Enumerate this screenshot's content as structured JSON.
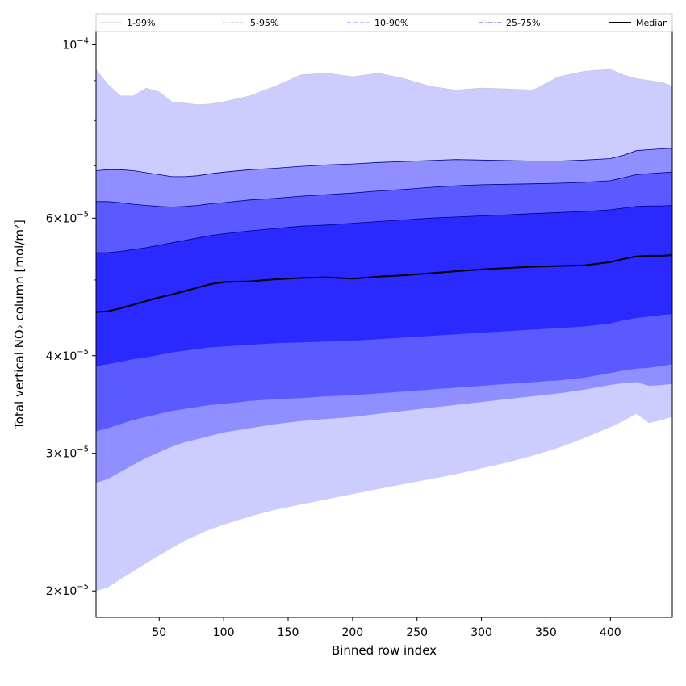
{
  "chart_data": {
    "type": "area",
    "xlabel": "Binned row index",
    "ylabel": "Total vertical NO₂ column [mol/m²]",
    "xlim": [
      1,
      448
    ],
    "ylim": [
      1.85e-05,
      0.000104
    ],
    "yscale": "log",
    "x_ticks": [
      50,
      100,
      150,
      200,
      250,
      300,
      350,
      400
    ],
    "x_tick_labels": [
      "50",
      "100",
      "150",
      "200",
      "250",
      "300",
      "350",
      "400"
    ],
    "y_ticks": [
      2e-05,
      3e-05,
      4e-05,
      6e-05,
      0.0001
    ],
    "y_tick_labels": [
      {
        "mant": "2×10",
        "exp": "−5"
      },
      {
        "mant": "3×10",
        "exp": "−5"
      },
      {
        "mant": "4×10",
        "exp": "−5"
      },
      {
        "mant": "6×10",
        "exp": "−5"
      },
      {
        "mant": "10",
        "exp": "−4"
      }
    ],
    "legend_position": "top, spanning full width",
    "x": [
      1,
      10,
      20,
      30,
      40,
      50,
      60,
      70,
      80,
      90,
      100,
      120,
      140,
      160,
      180,
      200,
      220,
      240,
      260,
      280,
      300,
      320,
      340,
      360,
      380,
      400,
      410,
      420,
      430,
      440,
      448
    ],
    "bands": [
      {
        "name": "1-99%",
        "color": "#ccccff",
        "edge": "#c8c8dc",
        "lower": [
          2e-05,
          2.02e-05,
          2.07e-05,
          2.12e-05,
          2.17e-05,
          2.22e-05,
          2.27e-05,
          2.32e-05,
          2.36e-05,
          2.4e-05,
          2.43e-05,
          2.49e-05,
          2.54e-05,
          2.58e-05,
          2.62e-05,
          2.66e-05,
          2.7e-05,
          2.74e-05,
          2.78e-05,
          2.82e-05,
          2.87e-05,
          2.92e-05,
          2.98e-05,
          3.05e-05,
          3.14e-05,
          3.24e-05,
          3.3e-05,
          3.37e-05,
          3.28e-05,
          3.31e-05,
          3.34e-05
        ],
        "upper": [
          9.3e-05,
          8.9e-05,
          8.6e-05,
          8.6e-05,
          8.8e-05,
          8.7e-05,
          8.45e-05,
          8.42e-05,
          8.38e-05,
          8.4e-05,
          8.45e-05,
          8.6e-05,
          8.85e-05,
          9.15e-05,
          9.2e-05,
          9.1e-05,
          9.2e-05,
          9.05e-05,
          8.85e-05,
          8.75e-05,
          8.8e-05,
          8.78e-05,
          8.75e-05,
          9.1e-05,
          9.25e-05,
          9.3e-05,
          9.15e-05,
          9.05e-05,
          9e-05,
          8.95e-05,
          8.85e-05
        ]
      },
      {
        "name": "5-95%",
        "color": "#8f8fff",
        "edge": "#00008b",
        "lower": [
          2.75e-05,
          2.78e-05,
          2.84e-05,
          2.9e-05,
          2.96e-05,
          3.01e-05,
          3.06e-05,
          3.1e-05,
          3.13e-05,
          3.16e-05,
          3.19e-05,
          3.23e-05,
          3.27e-05,
          3.3e-05,
          3.32e-05,
          3.34e-05,
          3.37e-05,
          3.4e-05,
          3.43e-05,
          3.46e-05,
          3.49e-05,
          3.52e-05,
          3.55e-05,
          3.58e-05,
          3.62e-05,
          3.67e-05,
          3.69e-05,
          3.7e-05,
          3.66e-05,
          3.67e-05,
          3.68e-05
        ],
        "upper": [
          6.9e-05,
          6.92e-05,
          6.92e-05,
          6.9e-05,
          6.86e-05,
          6.82e-05,
          6.78e-05,
          6.78e-05,
          6.8e-05,
          6.84e-05,
          6.87e-05,
          6.92e-05,
          6.95e-05,
          6.99e-05,
          7.02e-05,
          7.04e-05,
          7.07e-05,
          7.09e-05,
          7.11e-05,
          7.13e-05,
          7.12e-05,
          7.11e-05,
          7.1e-05,
          7.1e-05,
          7.12e-05,
          7.15e-05,
          7.22e-05,
          7.32e-05,
          7.34e-05,
          7.36e-05,
          7.37e-05
        ]
      },
      {
        "name": "10-90%",
        "color": "#5a5aff",
        "edge": "#00008b",
        "lower": [
          3.2e-05,
          3.23e-05,
          3.27e-05,
          3.31e-05,
          3.34e-05,
          3.37e-05,
          3.4e-05,
          3.42e-05,
          3.44e-05,
          3.46e-05,
          3.47e-05,
          3.5e-05,
          3.52e-05,
          3.53e-05,
          3.55e-05,
          3.56e-05,
          3.58e-05,
          3.6e-05,
          3.62e-05,
          3.64e-05,
          3.66e-05,
          3.68e-05,
          3.7e-05,
          3.72e-05,
          3.75e-05,
          3.8e-05,
          3.83e-05,
          3.85e-05,
          3.86e-05,
          3.88e-05,
          3.9e-05
        ],
        "upper": [
          6.3e-05,
          6.3e-05,
          6.28e-05,
          6.25e-05,
          6.23e-05,
          6.21e-05,
          6.2e-05,
          6.21e-05,
          6.23e-05,
          6.26e-05,
          6.28e-05,
          6.33e-05,
          6.36e-05,
          6.4e-05,
          6.43e-05,
          6.46e-05,
          6.5e-05,
          6.53e-05,
          6.57e-05,
          6.6e-05,
          6.62e-05,
          6.63e-05,
          6.64e-05,
          6.65e-05,
          6.67e-05,
          6.7e-05,
          6.76e-05,
          6.82e-05,
          6.84e-05,
          6.86e-05,
          6.87e-05
        ]
      },
      {
        "name": "25-75%",
        "color": "#2a2aff",
        "edge": "#00008b",
        "lower": [
          3.88e-05,
          3.9e-05,
          3.93e-05,
          3.96e-05,
          3.98e-05,
          4.01e-05,
          4.04e-05,
          4.06e-05,
          4.08e-05,
          4.1e-05,
          4.11e-05,
          4.13e-05,
          4.15e-05,
          4.16e-05,
          4.17e-05,
          4.18e-05,
          4.2e-05,
          4.22e-05,
          4.24e-05,
          4.26e-05,
          4.28e-05,
          4.3e-05,
          4.32e-05,
          4.34e-05,
          4.36e-05,
          4.4e-05,
          4.44e-05,
          4.47e-05,
          4.49e-05,
          4.51e-05,
          4.52e-05
        ],
        "upper": [
          5.42e-05,
          5.42e-05,
          5.44e-05,
          5.47e-05,
          5.5e-05,
          5.54e-05,
          5.58e-05,
          5.62e-05,
          5.66e-05,
          5.7e-05,
          5.73e-05,
          5.78e-05,
          5.82e-05,
          5.86e-05,
          5.88e-05,
          5.91e-05,
          5.94e-05,
          5.97e-05,
          6e-05,
          6.02e-05,
          6.04e-05,
          6.06e-05,
          6.08e-05,
          6.1e-05,
          6.12e-05,
          6.15e-05,
          6.18e-05,
          6.21e-05,
          6.22e-05,
          6.22e-05,
          6.23e-05
        ]
      }
    ],
    "median": {
      "name": "Median",
      "color": "#000000",
      "values": [
        4.55e-05,
        4.56e-05,
        4.6e-05,
        4.65e-05,
        4.7e-05,
        4.75e-05,
        4.79e-05,
        4.84e-05,
        4.89e-05,
        4.94e-05,
        4.97e-05,
        4.98e-05,
        5.01e-05,
        5.03e-05,
        5.04e-05,
        5.02e-05,
        5.05e-05,
        5.07e-05,
        5.1e-05,
        5.13e-05,
        5.16e-05,
        5.18e-05,
        5.2e-05,
        5.21e-05,
        5.22e-05,
        5.27e-05,
        5.32e-05,
        5.36e-05,
        5.37e-05,
        5.37e-05,
        5.38e-05
      ]
    },
    "legend": [
      {
        "label": "1-99%",
        "color": "#c8c8dc",
        "style": "solid"
      },
      {
        "label": "5-95%",
        "color": "#9a9ad8",
        "style": "dotted"
      },
      {
        "label": "10-90%",
        "color": "#8a8aff",
        "style": "dashed"
      },
      {
        "label": "25-75%",
        "color": "#4a4ad8",
        "style": "dashdot"
      },
      {
        "label": "Median",
        "color": "#000000",
        "style": "solid-thick"
      }
    ]
  }
}
